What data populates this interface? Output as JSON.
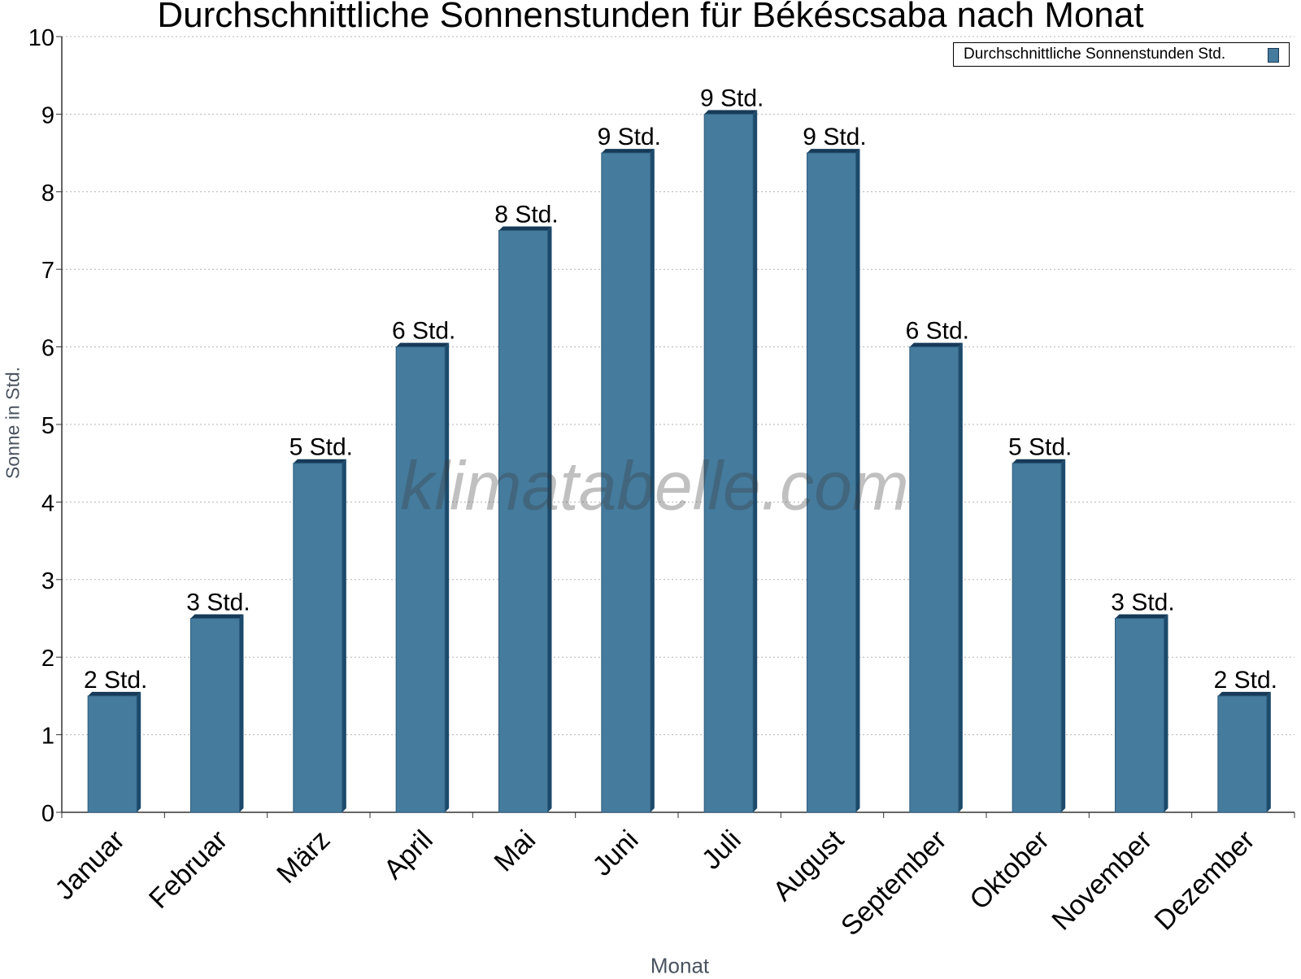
{
  "chart_data": {
    "type": "bar",
    "title": "Durchschnittliche Sonnenstunden für Békéscsaba nach Monat",
    "xlabel": "Monat",
    "ylabel": "Sonne in Std.",
    "categories": [
      "Januar",
      "Februar",
      "März",
      "April",
      "Mai",
      "Juni",
      "Juli",
      "August",
      "September",
      "Oktober",
      "November",
      "Dezember"
    ],
    "series": [
      {
        "name": "Durchschnittliche Sonnenstunden Std.",
        "values": [
          1.5,
          2.5,
          4.5,
          6,
          7.5,
          8.5,
          9,
          8.5,
          6,
          4.5,
          2.5,
          1.5
        ],
        "data_labels": [
          "2 Std.",
          "3 Std.",
          "5 Std.",
          "6 Std.",
          "8 Std.",
          "9 Std.",
          "9 Std.",
          "9 Std.",
          "6 Std.",
          "5 Std.",
          "3 Std.",
          "2 Std."
        ],
        "color": "#457b9d"
      }
    ],
    "ylim": [
      0,
      10
    ],
    "yticks": [
      "0",
      "1",
      "2",
      "3",
      "4",
      "5",
      "6",
      "7",
      "8",
      "9",
      "10"
    ],
    "grid": true,
    "legend": "top-right",
    "watermark": "klimatabelle.com"
  }
}
